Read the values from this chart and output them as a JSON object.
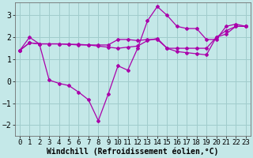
{
  "xlabel": "Windchill (Refroidissement éolien,°C)",
  "xlim": [
    -0.5,
    23.5
  ],
  "ylim": [
    -2.5,
    3.6
  ],
  "xticks": [
    0,
    1,
    2,
    3,
    4,
    5,
    6,
    7,
    8,
    9,
    10,
    11,
    12,
    13,
    14,
    15,
    16,
    17,
    18,
    19,
    20,
    21,
    22,
    23
  ],
  "yticks": [
    -2,
    -1,
    0,
    1,
    2,
    3
  ],
  "bg_color": "#c4e8e8",
  "grid_color": "#a0cccc",
  "line_color": "#aa00aa",
  "line1_x": [
    0,
    1,
    2,
    3,
    4,
    5,
    6,
    7,
    8,
    9,
    10,
    11,
    12,
    13,
    14,
    15,
    16,
    17,
    18,
    19,
    20,
    21,
    22,
    23
  ],
  "line1_y": [
    1.4,
    2.0,
    1.7,
    0.05,
    -0.1,
    -0.2,
    -0.5,
    -0.85,
    -1.8,
    -0.6,
    0.7,
    0.5,
    1.5,
    2.75,
    3.4,
    3.0,
    2.5,
    2.4,
    2.4,
    1.9,
    1.9,
    2.5,
    2.6,
    2.5
  ],
  "line2_x": [
    0,
    1,
    2,
    3,
    4,
    5,
    6,
    7,
    8,
    9,
    10,
    11,
    12,
    13,
    14,
    15,
    16,
    17,
    18,
    19,
    20,
    21,
    22,
    23
  ],
  "line2_y": [
    1.4,
    1.75,
    1.7,
    1.7,
    1.7,
    1.68,
    1.65,
    1.65,
    1.65,
    1.65,
    1.9,
    1.9,
    1.85,
    1.9,
    1.9,
    1.5,
    1.5,
    1.5,
    1.5,
    1.5,
    2.0,
    2.15,
    2.5,
    2.5
  ],
  "line3_x": [
    0,
    1,
    2,
    3,
    4,
    5,
    6,
    7,
    8,
    9,
    10,
    11,
    12,
    13,
    14,
    15,
    16,
    17,
    18,
    19,
    20,
    21,
    22,
    23
  ],
  "line3_y": [
    1.4,
    1.75,
    1.7,
    1.7,
    1.7,
    1.68,
    1.68,
    1.65,
    1.6,
    1.55,
    1.5,
    1.55,
    1.6,
    1.85,
    1.95,
    1.5,
    1.35,
    1.3,
    1.25,
    1.2,
    2.0,
    2.3,
    2.5,
    2.5
  ],
  "xlabel_fontsize": 7,
  "tick_fontsize": 6.5
}
